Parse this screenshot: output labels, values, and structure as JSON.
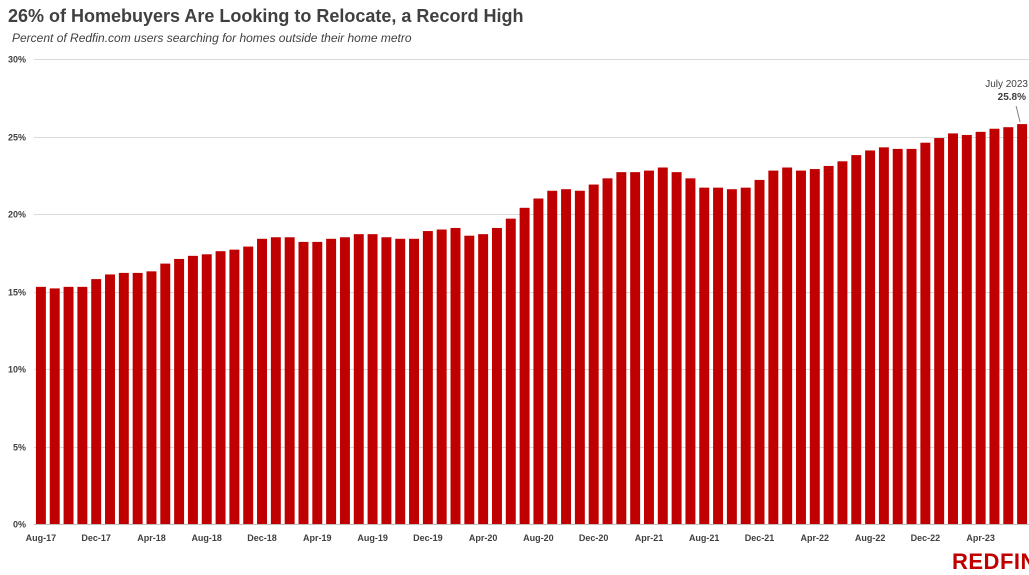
{
  "brand": "REDFIN",
  "chart_data": {
    "type": "bar",
    "title": "26% of Homebuyers Are Looking to Relocate, a Record High",
    "subtitle": "Percent of Redfin.com users searching for homes outside their home metro",
    "xlabel": "",
    "ylabel": "",
    "ylim": [
      0,
      30
    ],
    "y_ticks": [
      0,
      5,
      10,
      15,
      20,
      25,
      30
    ],
    "y_tick_labels": [
      "0%",
      "5%",
      "10%",
      "15%",
      "20%",
      "25%",
      "30%"
    ],
    "grid": true,
    "legend": "none",
    "bar_color": "#c00000",
    "categories": [
      "Aug-17",
      "Sep-17",
      "Oct-17",
      "Nov-17",
      "Dec-17",
      "Jan-18",
      "Feb-18",
      "Mar-18",
      "Apr-18",
      "May-18",
      "Jun-18",
      "Jul-18",
      "Aug-18",
      "Sep-18",
      "Oct-18",
      "Nov-18",
      "Dec-18",
      "Jan-19",
      "Feb-19",
      "Mar-19",
      "Apr-19",
      "May-19",
      "Jun-19",
      "Jul-19",
      "Aug-19",
      "Sep-19",
      "Oct-19",
      "Nov-19",
      "Dec-19",
      "Jan-20",
      "Feb-20",
      "Mar-20",
      "Apr-20",
      "May-20",
      "Jun-20",
      "Jul-20",
      "Aug-20",
      "Sep-20",
      "Oct-20",
      "Nov-20",
      "Dec-20",
      "Jan-21",
      "Feb-21",
      "Mar-21",
      "Apr-21",
      "May-21",
      "Jun-21",
      "Jul-21",
      "Aug-21",
      "Sep-21",
      "Oct-21",
      "Nov-21",
      "Dec-21",
      "Jan-22",
      "Feb-22",
      "Mar-22",
      "Apr-22",
      "May-22",
      "Jun-22",
      "Jul-22",
      "Aug-22",
      "Sep-22",
      "Oct-22",
      "Nov-22",
      "Dec-22",
      "Jan-23",
      "Feb-23",
      "Mar-23",
      "Apr-23",
      "May-23",
      "Jun-23",
      "Jul-23"
    ],
    "x_tick_labels": [
      "Aug-17",
      "Dec-17",
      "Apr-18",
      "Aug-18",
      "Dec-18",
      "Apr-19",
      "Aug-19",
      "Dec-19",
      "Apr-20",
      "Aug-20",
      "Dec-20",
      "Apr-21",
      "Aug-21",
      "Dec-21",
      "Apr-22",
      "Aug-22",
      "Dec-22",
      "Apr-23"
    ],
    "values": [
      15.3,
      15.2,
      15.3,
      15.3,
      15.8,
      16.1,
      16.2,
      16.2,
      16.3,
      16.8,
      17.1,
      17.3,
      17.4,
      17.6,
      17.7,
      17.9,
      18.4,
      18.5,
      18.5,
      18.2,
      18.2,
      18.4,
      18.5,
      18.7,
      18.7,
      18.5,
      18.4,
      18.4,
      18.9,
      19.0,
      19.1,
      18.6,
      18.7,
      19.1,
      19.7,
      20.4,
      21.0,
      21.5,
      21.6,
      21.5,
      21.9,
      22.3,
      22.7,
      22.7,
      22.8,
      23.0,
      22.7,
      22.3,
      21.7,
      21.7,
      21.6,
      21.7,
      22.2,
      22.8,
      23.0,
      22.8,
      22.9,
      23.1,
      23.4,
      23.8,
      24.1,
      24.3,
      24.2,
      24.2,
      24.6,
      24.9,
      25.2,
      25.1,
      25.3,
      25.5,
      25.6,
      25.8
    ],
    "annotation": {
      "label": "July 2023",
      "value_label": "25.8%"
    }
  }
}
